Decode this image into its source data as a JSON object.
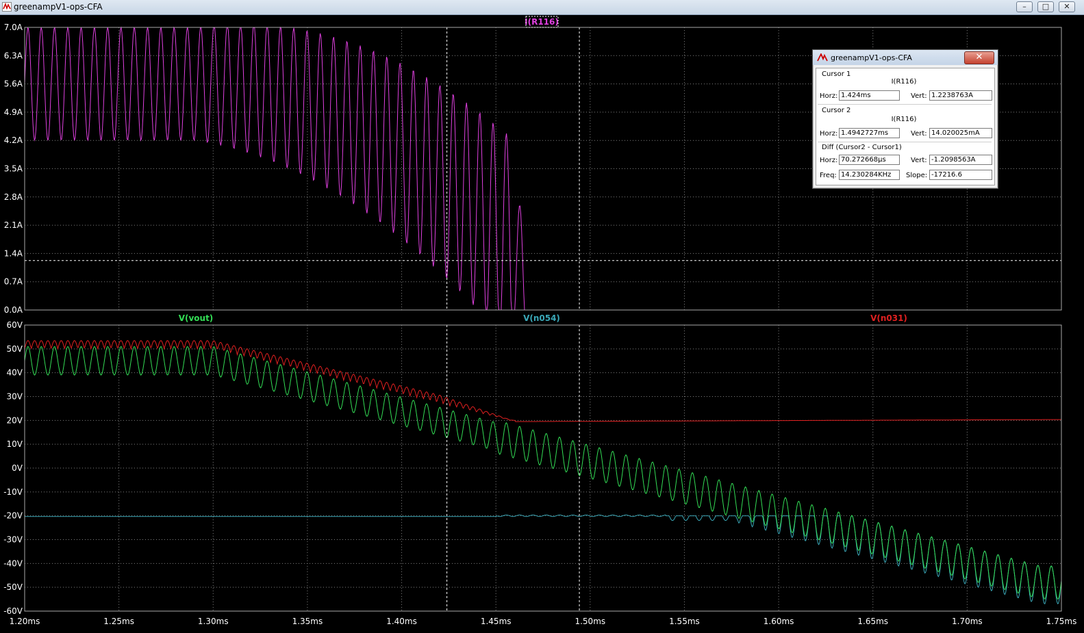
{
  "window": {
    "title": "greenampV1-ops-CFA",
    "buttons": {
      "minimize": "–",
      "maximize": "□",
      "close": "✕"
    }
  },
  "plot": {
    "x_ticks": [
      "1.20ms",
      "1.25ms",
      "1.30ms",
      "1.35ms",
      "1.40ms",
      "1.45ms",
      "1.50ms",
      "1.55ms",
      "1.60ms",
      "1.65ms",
      "1.70ms",
      "1.75ms"
    ],
    "x_range_ms": [
      1.2,
      1.75
    ],
    "upper_pane": {
      "traces": [
        {
          "name": "I(R116)",
          "color": "#e040e0"
        }
      ],
      "y_ticks": [
        "7.0A",
        "6.3A",
        "5.6A",
        "4.9A",
        "4.2A",
        "3.5A",
        "2.8A",
        "2.1A",
        "1.4A",
        "0.7A",
        "0.0A"
      ],
      "y_range": [
        0,
        7
      ],
      "y_units": "A"
    },
    "lower_pane": {
      "traces": [
        {
          "name": "V(vout)",
          "color": "#33dd55"
        },
        {
          "name": "V(n054)",
          "color": "#3aa8b8"
        },
        {
          "name": "V(n031)",
          "color": "#e02020"
        }
      ],
      "y_ticks": [
        "60V",
        "50V",
        "40V",
        "30V",
        "20V",
        "10V",
        "0V",
        "-10V",
        "-20V",
        "-30V",
        "-40V",
        "-50V",
        "-60V"
      ],
      "y_range": [
        -60,
        60
      ],
      "y_units": "V"
    },
    "cursor1": {
      "time_ms": 1.424,
      "level_A": 1.2238763
    },
    "cursor2": {
      "time_ms": 1.4942727
    }
  },
  "cursor_dialog": {
    "title": "greenampV1-ops-CFA",
    "close": "✕",
    "cursor1": {
      "header": "Cursor 1",
      "trace": "I(R116)",
      "horz_label": "Horz:",
      "horz": "1.424ms",
      "vert_label": "Vert:",
      "vert": "1.2238763A"
    },
    "cursor2": {
      "header": "Cursor 2",
      "trace": "I(R116)",
      "horz_label": "Horz:",
      "horz": "1.4942727ms",
      "vert_label": "Vert:",
      "vert": "14.020025mA"
    },
    "diff": {
      "header": "Diff (Cursor2 - Cursor1)",
      "horz_label": "Horz:",
      "horz": "70.272668µs",
      "vert_label": "Vert:",
      "vert": "-1.2098563A",
      "freq_label": "Freq:",
      "freq": "14.230284KHz",
      "slope_label": "Slope:",
      "slope": "-17216.6"
    }
  }
}
